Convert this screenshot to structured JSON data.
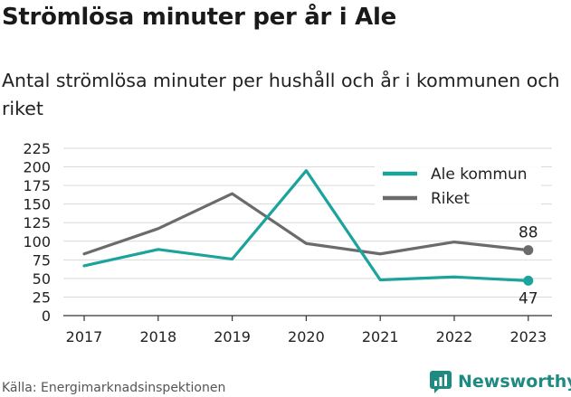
{
  "title": "Strömlösa minuter per år i Ale",
  "subtitle": "Antal strömlösa minuter per hushåll och år i kommunen och riket",
  "source": "Källa: Energimarknadsinspektionen",
  "brand": {
    "name": "Newsworthy",
    "icon": "newsworthy-logo-icon",
    "color": "#1e8a82"
  },
  "colors": {
    "ale": "#1ba39c",
    "riket": "#6b6b6b",
    "grid": "#d9d9d9"
  },
  "chart_data": {
    "type": "line",
    "title": "Strömlösa minuter per år i Ale",
    "subtitle": "Antal strömlösa minuter per hushåll och år i kommunen och riket",
    "xlabel": "",
    "ylabel": "",
    "categories": [
      "2017",
      "2018",
      "2019",
      "2020",
      "2021",
      "2022",
      "2023"
    ],
    "ylim": [
      0,
      225
    ],
    "yticks": [
      0,
      25,
      50,
      75,
      100,
      125,
      150,
      175,
      200,
      225
    ],
    "grid": true,
    "legend": "top-right",
    "series": [
      {
        "name": "Ale kommun",
        "color": "#1ba39c",
        "values": [
          67,
          89,
          76,
          195,
          48,
          52,
          47
        ],
        "end_label": "47"
      },
      {
        "name": "Riket",
        "color": "#6b6b6b",
        "values": [
          83,
          117,
          164,
          97,
          83,
          99,
          88
        ],
        "end_label": "88"
      }
    ]
  }
}
